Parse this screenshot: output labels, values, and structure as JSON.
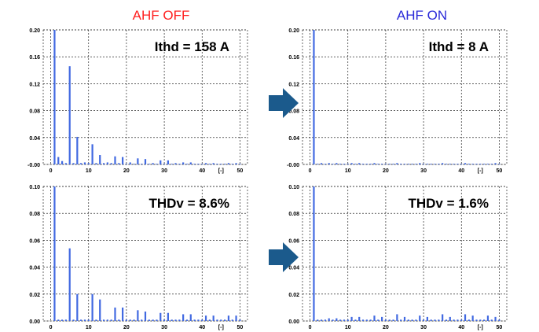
{
  "titles": {
    "left": "AHF OFF",
    "right": "AHF ON",
    "left_color": "#ff2020",
    "right_color": "#2a2ad8"
  },
  "colors": {
    "bar": "#4169e1",
    "grid": "#000000",
    "arrow": "#1b5a8c"
  },
  "icons": {
    "arrow": "right-arrow-icon"
  },
  "chart_data": [
    {
      "type": "bar",
      "annotation": "Ithd = 158 A",
      "ylim": [
        0,
        0.2
      ],
      "yticks": [
        "0.20",
        "0.16",
        "0.12",
        "0.08",
        "0.04",
        "-0.00"
      ],
      "xticks": [
        "0",
        "10",
        "20",
        "30",
        "40",
        "[-]",
        "50"
      ],
      "x": [
        1,
        2,
        3,
        4,
        5,
        6,
        7,
        8,
        9,
        10,
        11,
        12,
        13,
        14,
        15,
        16,
        17,
        18,
        19,
        20,
        21,
        22,
        23,
        24,
        25,
        26,
        27,
        28,
        29,
        30,
        31,
        32,
        33,
        34,
        35,
        36,
        37,
        38,
        39,
        40,
        41,
        42,
        43,
        44,
        45,
        46,
        47,
        48,
        49,
        50
      ],
      "values": [
        0.2,
        0.011,
        0.005,
        0.002,
        0.146,
        0.002,
        0.041,
        0.002,
        0.003,
        0.002,
        0.03,
        0.002,
        0.014,
        0.002,
        0.003,
        0.002,
        0.012,
        0.002,
        0.011,
        0.001,
        0.003,
        0.001,
        0.009,
        0.001,
        0.008,
        0.001,
        0.002,
        0.001,
        0.006,
        0.001,
        0.006,
        0.001,
        0.002,
        0.001,
        0.003,
        0.001,
        0.003,
        0.001,
        0.001,
        0.001,
        0.002,
        0.001,
        0.002,
        0.001,
        0.001,
        0.001,
        0.002,
        0.001,
        0.002,
        0.001
      ]
    },
    {
      "type": "bar",
      "annotation": "Ithd = 8 A",
      "ylim": [
        0,
        0.2
      ],
      "yticks": [
        "0.20",
        "0.16",
        "0.12",
        "0.08",
        "0.04",
        "-0.00"
      ],
      "xticks": [
        "0",
        "10",
        "20",
        "30",
        "40",
        "[-]",
        "50"
      ],
      "x": [
        1,
        2,
        3,
        4,
        5,
        6,
        7,
        8,
        9,
        10,
        11,
        12,
        13,
        14,
        15,
        16,
        17,
        18,
        19,
        20,
        21,
        22,
        23,
        24,
        25,
        26,
        27,
        28,
        29,
        30,
        31,
        32,
        33,
        34,
        35,
        36,
        37,
        38,
        39,
        40,
        41,
        42,
        43,
        44,
        45,
        46,
        47,
        48,
        49,
        50
      ],
      "values": [
        0.2,
        0.001,
        0.002,
        0.001,
        0.002,
        0.001,
        0.002,
        0.001,
        0.001,
        0.001,
        0.002,
        0.001,
        0.002,
        0.001,
        0.001,
        0.001,
        0.002,
        0.001,
        0.001,
        0.001,
        0.001,
        0.001,
        0.002,
        0.001,
        0.001,
        0.001,
        0.001,
        0.001,
        0.002,
        0.001,
        0.001,
        0.001,
        0.001,
        0.001,
        0.002,
        0.001,
        0.001,
        0.001,
        0.001,
        0.001,
        0.002,
        0.001,
        0.001,
        0.001,
        0.001,
        0.001,
        0.001,
        0.001,
        0.002,
        0.001
      ]
    },
    {
      "type": "bar",
      "annotation": "THDv = 8.6%",
      "ylim": [
        0,
        0.1
      ],
      "yticks": [
        "0.10",
        "0.08",
        "0.06",
        "0.04",
        "0.02",
        "0.00"
      ],
      "xticks": [
        "0",
        "10",
        "20",
        "30",
        "40",
        "[-]",
        "50"
      ],
      "x": [
        1,
        2,
        3,
        4,
        5,
        6,
        7,
        8,
        9,
        10,
        11,
        12,
        13,
        14,
        15,
        16,
        17,
        18,
        19,
        20,
        21,
        22,
        23,
        24,
        25,
        26,
        27,
        28,
        29,
        30,
        31,
        32,
        33,
        34,
        35,
        36,
        37,
        38,
        39,
        40,
        41,
        42,
        43,
        44,
        45,
        46,
        47,
        48,
        49,
        50
      ],
      "values": [
        0.1,
        0.001,
        0.001,
        0.001,
        0.054,
        0.001,
        0.02,
        0.001,
        0.001,
        0.001,
        0.02,
        0.001,
        0.016,
        0.001,
        0.001,
        0.001,
        0.01,
        0.001,
        0.01,
        0.001,
        0.001,
        0.001,
        0.008,
        0.001,
        0.007,
        0.001,
        0.001,
        0.001,
        0.006,
        0.001,
        0.006,
        0.001,
        0.001,
        0.001,
        0.005,
        0.001,
        0.005,
        0.001,
        0.001,
        0.001,
        0.004,
        0.001,
        0.004,
        0.001,
        0.001,
        0.001,
        0.004,
        0.001,
        0.004,
        0.001
      ]
    },
    {
      "type": "bar",
      "annotation": "THDv = 1.6%",
      "ylim": [
        0,
        0.1
      ],
      "yticks": [
        "0.10",
        "0.08",
        "0.06",
        "0.04",
        "0.02",
        "0.00"
      ],
      "xticks": [
        "0",
        "10",
        "20",
        "30",
        "40",
        "[-]",
        "50"
      ],
      "x": [
        1,
        2,
        3,
        4,
        5,
        6,
        7,
        8,
        9,
        10,
        11,
        12,
        13,
        14,
        15,
        16,
        17,
        18,
        19,
        20,
        21,
        22,
        23,
        24,
        25,
        26,
        27,
        28,
        29,
        30,
        31,
        32,
        33,
        34,
        35,
        36,
        37,
        38,
        39,
        40,
        41,
        42,
        43,
        44,
        45,
        46,
        47,
        48,
        49,
        50
      ],
      "values": [
        0.1,
        0.001,
        0.001,
        0.001,
        0.002,
        0.001,
        0.002,
        0.001,
        0.001,
        0.001,
        0.003,
        0.001,
        0.003,
        0.001,
        0.001,
        0.001,
        0.004,
        0.001,
        0.003,
        0.001,
        0.001,
        0.001,
        0.005,
        0.001,
        0.003,
        0.001,
        0.001,
        0.001,
        0.004,
        0.001,
        0.003,
        0.001,
        0.001,
        0.001,
        0.005,
        0.001,
        0.003,
        0.001,
        0.001,
        0.001,
        0.005,
        0.001,
        0.004,
        0.001,
        0.001,
        0.001,
        0.004,
        0.001,
        0.003,
        0.001
      ]
    }
  ]
}
